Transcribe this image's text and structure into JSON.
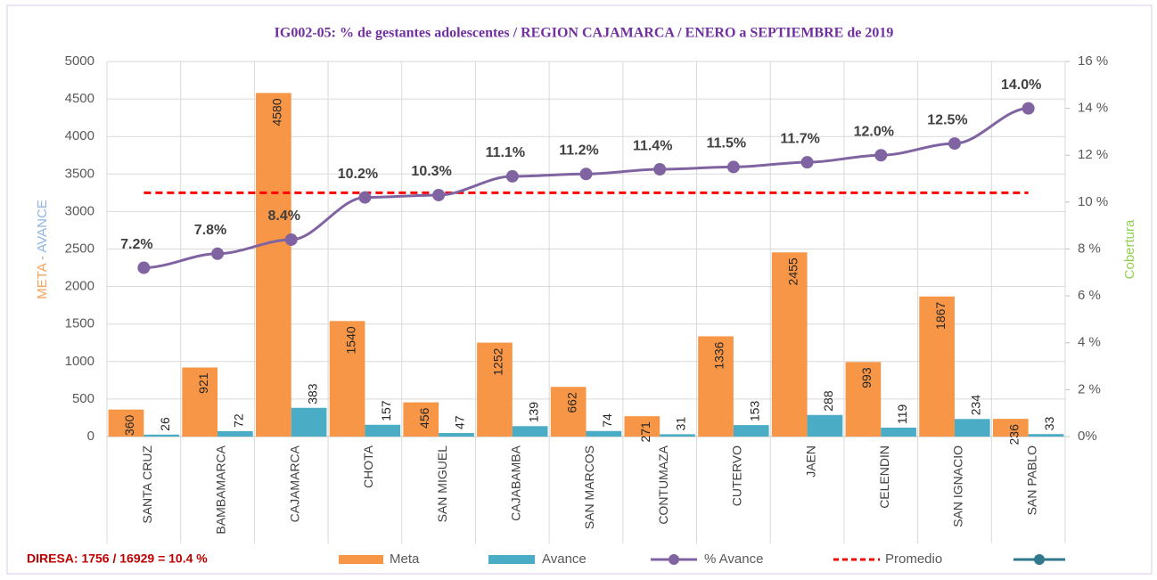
{
  "chart_data": {
    "type": "bar_line",
    "title": "IG002-05: % de gestantes adolescentes / REGION CAJAMARCA  /  ENERO a SEPTIEMBRE de 2019",
    "categories": [
      "SANTA CRUZ",
      "BAMBAMARCA",
      "CAJAMARCA",
      "CHOTA",
      "SAN MIGUEL",
      "CAJABAMBA",
      "SAN MARCOS",
      "CONTUMAZA",
      "CUTERVO",
      "JAEN",
      "CELENDIN",
      "SAN IGNACIO",
      "SAN PABLO"
    ],
    "series": [
      {
        "name": "Meta",
        "color": "#f79646",
        "values": [
          360,
          921,
          4580,
          1540,
          456,
          1252,
          662,
          271,
          1336,
          2455,
          993,
          1867,
          236
        ]
      },
      {
        "name": "Avance",
        "color": "#4bacc6",
        "values": [
          26,
          72,
          383,
          157,
          47,
          139,
          74,
          31,
          153,
          288,
          119,
          234,
          33
        ]
      },
      {
        "name": "% Avance",
        "color": "#8064a2",
        "axis": "y2",
        "values": [
          7.2,
          7.8,
          8.4,
          10.2,
          10.3,
          11.1,
          11.2,
          11.4,
          11.5,
          11.7,
          12.0,
          12.5,
          14.0
        ],
        "value_labels": [
          "7.2%",
          "7.8%",
          "8.4%",
          "10.2%",
          "10.3%",
          "11.1%",
          "11.2%",
          "11.4%",
          "11.5%",
          "11.7%",
          "12.0%",
          "12.5%",
          "14.0%"
        ]
      }
    ],
    "average": {
      "name": "Promedio",
      "color": "#ff0000",
      "axis": "y2",
      "value": 10.4
    },
    "ylabel": [
      "META",
      "-",
      "AVANCE"
    ],
    "ylabel_colors": [
      "#f7a35c",
      "#a6a6a6",
      "#8eb4e3"
    ],
    "y2label": "Cobertura",
    "y2label_color": "#92d050",
    "ylim": [
      0,
      5000
    ],
    "yticks": [
      0,
      500,
      1000,
      1500,
      2000,
      2500,
      3000,
      3500,
      4000,
      4500,
      5000
    ],
    "y2lim": [
      0,
      16
    ],
    "y2ticks": [
      {
        "value": 0,
        "label": "0%"
      },
      {
        "value": 2,
        "label": "2 %"
      },
      {
        "value": 4,
        "label": "4 %"
      },
      {
        "value": 6,
        "label": "6 %"
      },
      {
        "value": 8,
        "label": "8 %"
      },
      {
        "value": 10,
        "label": "10 %"
      },
      {
        "value": 12,
        "label": "12 %"
      },
      {
        "value": 14,
        "label": "14 %"
      },
      {
        "value": 16,
        "label": "16 %"
      }
    ],
    "grid": true,
    "footnote": "DIRESA: 1756 / 16929  = 10.4 %"
  }
}
